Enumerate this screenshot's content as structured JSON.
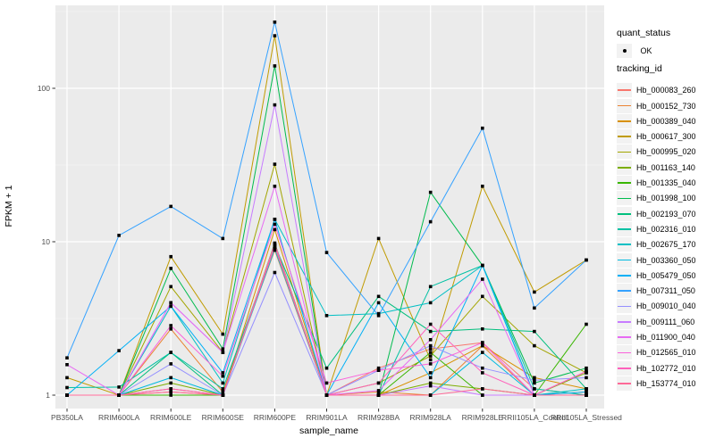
{
  "legend": {
    "quant_status": {
      "title": "quant_status",
      "item": "OK"
    },
    "tracking_id": {
      "title": "tracking_id"
    }
  },
  "colors": {
    "panel_background": "#EBEBEB",
    "gridline": "#FFFFFF",
    "point_marker": "#000000",
    "legend_key_background": "#F2F2F2",
    "axis_text": "#4D4D4D"
  },
  "chart_data": {
    "type": "line",
    "title": "",
    "xlabel": "sample_name",
    "ylabel": "FPKM + 1",
    "y_scale": "log10",
    "ylim": [
      0.85,
      350
    ],
    "y_ticks": [
      1,
      10,
      100
    ],
    "y_minor_gridlines": [
      3.162,
      31.62,
      316.2
    ],
    "grid": true,
    "legend_position": "right",
    "point_marker_color": "#000000",
    "quant_status": "OK",
    "categories": [
      "PB350LA",
      "RRIM600LA",
      "RRIM600LE",
      "RRIM600SE",
      "RRIM600PE",
      "RRIM901LA",
      "RRIM928BA",
      "RRIM928LA",
      "RRIM928LE",
      "RRII105LA_Control",
      "RRII105LA_Stressed"
    ],
    "series": [
      {
        "name": "Hb_000083_260",
        "color": "#F8766D",
        "values": [
          1.0,
          1.0,
          1.05,
          1.0,
          9.5,
          1.0,
          1.5,
          2.0,
          2.2,
          1.1,
          1.0
        ]
      },
      {
        "name": "Hb_000152_730",
        "color": "#EA8331",
        "values": [
          1.0,
          1.0,
          2.7,
          1.05,
          8.8,
          1.0,
          1.05,
          1.0,
          2.1,
          1.0,
          1.05
        ]
      },
      {
        "name": "Hb_000389_040",
        "color": "#D89000",
        "values": [
          1.0,
          1.0,
          1.1,
          1.0,
          12.0,
          1.0,
          1.0,
          1.4,
          2.1,
          1.3,
          1.1
        ]
      },
      {
        "name": "Hb_000617_300",
        "color": "#C09B00",
        "values": [
          1.3,
          1.0,
          8.0,
          2.5,
          220.0,
          1.0,
          10.5,
          1.7,
          23.0,
          4.7,
          7.6
        ]
      },
      {
        "name": "Hb_000995_020",
        "color": "#A3A500",
        "values": [
          1.0,
          1.0,
          5.1,
          1.9,
          32.0,
          1.0,
          1.2,
          1.8,
          4.4,
          2.1,
          1.4
        ]
      },
      {
        "name": "Hb_001163_140",
        "color": "#7CAE00",
        "values": [
          1.0,
          1.0,
          1.2,
          1.0,
          9.5,
          1.0,
          1.0,
          1.2,
          1.1,
          1.0,
          1.4
        ]
      },
      {
        "name": "Hb_001335_040",
        "color": "#39B600",
        "values": [
          1.0,
          1.0,
          1.0,
          1.0,
          9.8,
          1.0,
          1.0,
          1.9,
          1.0,
          1.0,
          2.9
        ]
      },
      {
        "name": "Hb_001998_100",
        "color": "#00BB4E",
        "values": [
          1.0,
          1.0,
          6.7,
          2.0,
          140.0,
          1.0,
          1.0,
          21.0,
          7.0,
          1.2,
          1.5
        ]
      },
      {
        "name": "Hb_002193_070",
        "color": "#00BF7D",
        "values": [
          1.0,
          1.0,
          1.9,
          1.0,
          9.5,
          1.5,
          4.4,
          2.6,
          2.7,
          2.6,
          1.1
        ]
      },
      {
        "name": "Hb_002316_010",
        "color": "#00C1A3",
        "values": [
          1.12,
          1.13,
          1.9,
          1.1,
          9.2,
          1.0,
          1.0,
          5.1,
          7.0,
          1.1,
          1.0
        ]
      },
      {
        "name": "Hb_002675_170",
        "color": "#00BFC4",
        "values": [
          1.0,
          1.0,
          3.8,
          1.2,
          14.0,
          3.3,
          3.4,
          4.0,
          7.0,
          1.0,
          1.1
        ]
      },
      {
        "name": "Hb_003360_050",
        "color": "#00BAE0",
        "values": [
          1.0,
          1.0,
          1.3,
          1.0,
          9.0,
          1.0,
          1.0,
          1.0,
          1.9,
          1.0,
          1.0
        ]
      },
      {
        "name": "Hb_005479_050",
        "color": "#00B0F6",
        "values": [
          1.0,
          1.95,
          3.8,
          1.4,
          14.0,
          1.0,
          4.0,
          1.3,
          7.0,
          1.0,
          1.05
        ]
      },
      {
        "name": "Hb_007311_050",
        "color": "#35A2FF",
        "values": [
          1.75,
          11.0,
          17.0,
          10.5,
          270.0,
          8.5,
          3.3,
          13.5,
          55.0,
          3.7,
          7.6
        ]
      },
      {
        "name": "Hb_009010_040",
        "color": "#9590FF",
        "values": [
          1.0,
          1.0,
          1.6,
          1.0,
          6.3,
          1.0,
          1.45,
          2.1,
          1.5,
          1.25,
          1.3
        ]
      },
      {
        "name": "Hb_009111_060",
        "color": "#C77CFF",
        "values": [
          1.0,
          1.0,
          4.0,
          1.9,
          78.0,
          1.0,
          1.0,
          1.15,
          1.0,
          1.0,
          1.0
        ]
      },
      {
        "name": "Hb_011900_040",
        "color": "#E76BF3",
        "values": [
          1.58,
          1.0,
          4.0,
          1.9,
          23.0,
          1.0,
          1.07,
          2.3,
          5.7,
          1.0,
          1.0
        ]
      },
      {
        "name": "Hb_012565_010",
        "color": "#FA62DB",
        "values": [
          1.0,
          1.0,
          2.84,
          1.33,
          13.0,
          1.2,
          1.45,
          1.6,
          2.2,
          1.0,
          1.43
        ]
      },
      {
        "name": "Hb_102772_010",
        "color": "#FF62BC",
        "values": [
          1.0,
          1.0,
          1.1,
          1.0,
          9.7,
          1.0,
          1.2,
          2.9,
          1.4,
          1.0,
          1.43
        ]
      },
      {
        "name": "Hb_153774_010",
        "color": "#FF6A98",
        "values": [
          1.0,
          1.0,
          1.05,
          1.0,
          9.3,
          1.0,
          1.0,
          1.0,
          1.1,
          1.0,
          1.0
        ]
      }
    ]
  }
}
